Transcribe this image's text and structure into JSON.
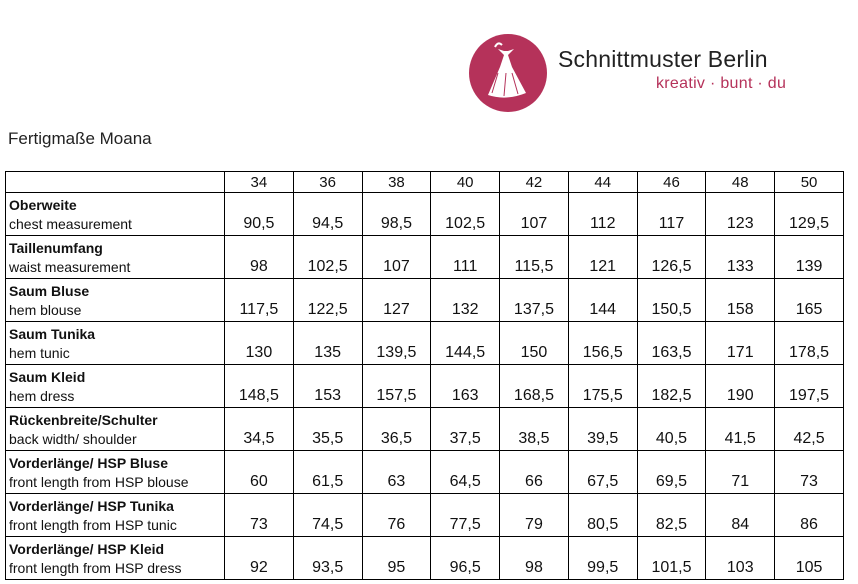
{
  "header": {
    "brand": "Schnittmuster Berlin",
    "tagline": "kreativ · bunt · du"
  },
  "title": "Fertigmaße Moana",
  "table": {
    "sizes": [
      "34",
      "36",
      "38",
      "40",
      "42",
      "44",
      "46",
      "48",
      "50"
    ],
    "rows": [
      {
        "label_de": "Oberweite",
        "label_en": "chest measurement",
        "values": [
          "90,5",
          "94,5",
          "98,5",
          "102,5",
          "107",
          "112",
          "117",
          "123",
          "129,5"
        ]
      },
      {
        "label_de": "Taillenumfang",
        "label_en": "waist measurement",
        "values": [
          "98",
          "102,5",
          "107",
          "111",
          "115,5",
          "121",
          "126,5",
          "133",
          "139"
        ]
      },
      {
        "label_de": "Saum Bluse",
        "label_en": "hem blouse",
        "values": [
          "117,5",
          "122,5",
          "127",
          "132",
          "137,5",
          "144",
          "150,5",
          "158",
          "165"
        ]
      },
      {
        "label_de": "Saum Tunika",
        "label_en": "hem tunic",
        "values": [
          "130",
          "135",
          "139,5",
          "144,5",
          "150",
          "156,5",
          "163,5",
          "171",
          "178,5"
        ]
      },
      {
        "label_de": "Saum Kleid",
        "label_en": "hem dress",
        "values": [
          "148,5",
          "153",
          "157,5",
          "163",
          "168,5",
          "175,5",
          "182,5",
          "190",
          "197,5"
        ]
      },
      {
        "label_de": "Rückenbreite/Schulter",
        "label_en": "back width/ shoulder",
        "values": [
          "34,5",
          "35,5",
          "36,5",
          "37,5",
          "38,5",
          "39,5",
          "40,5",
          "41,5",
          "42,5"
        ]
      },
      {
        "label_de": "Vorderlänge/ HSP Bluse",
        "label_en": "front length from HSP blouse",
        "values": [
          "60",
          "61,5",
          "63",
          "64,5",
          "66",
          "67,5",
          "69,5",
          "71",
          "73"
        ]
      },
      {
        "label_de": "Vorderlänge/ HSP Tunika",
        "label_en": "front length from HSP tunic",
        "values": [
          "73",
          "74,5",
          "76",
          "77,5",
          "79",
          "80,5",
          "82,5",
          "84",
          "86"
        ]
      },
      {
        "label_de": "Vorderlänge/ HSP Kleid",
        "label_en": "front length from HSP dress",
        "values": [
          "92",
          "93,5",
          "95",
          "96,5",
          "98",
          "99,5",
          "101,5",
          "103",
          "105"
        ]
      }
    ]
  }
}
